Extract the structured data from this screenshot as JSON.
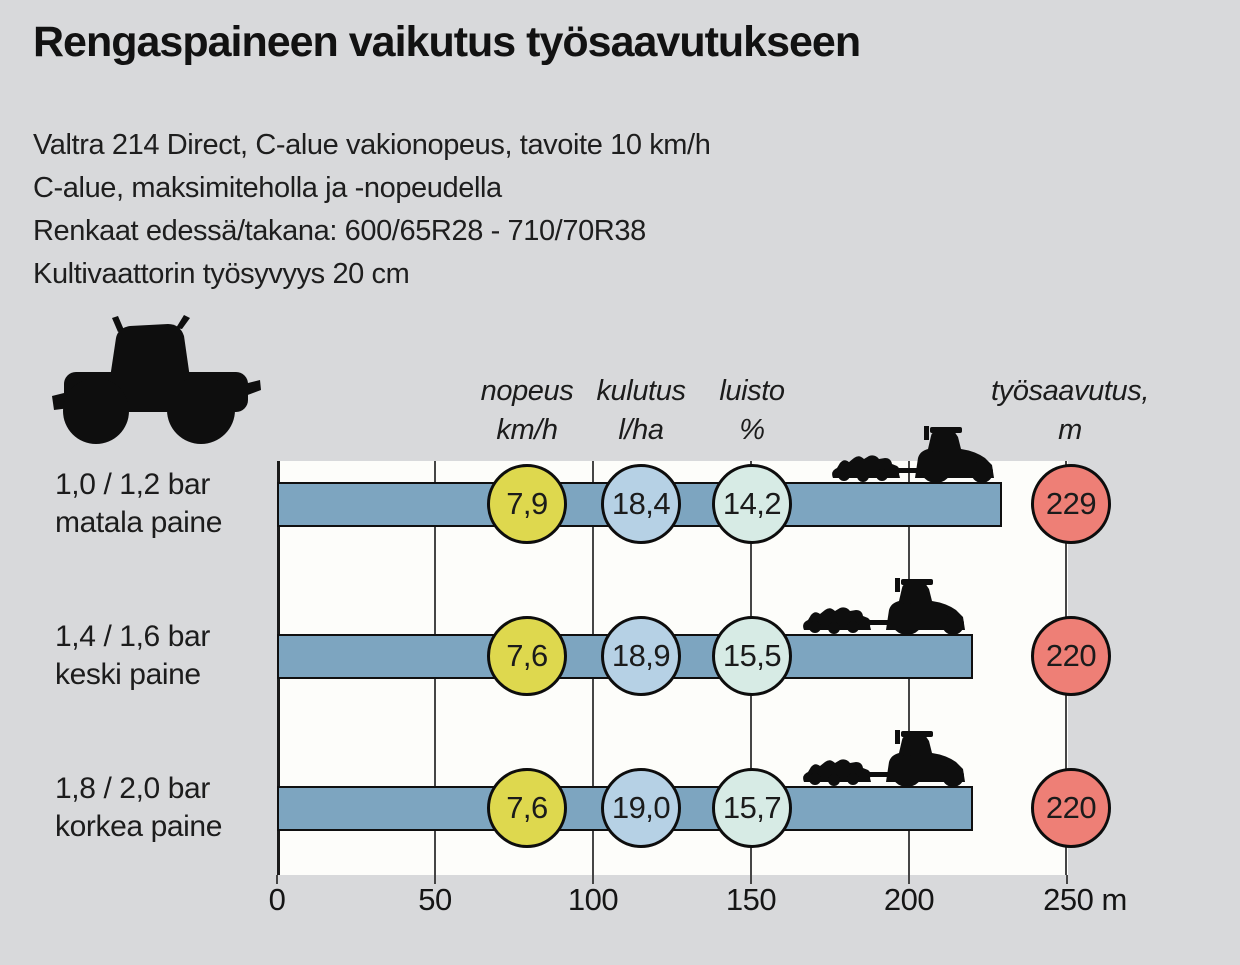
{
  "title": "Rengaspaineen vaikutus työsaavutukseen",
  "subtitle_lines": [
    "Valtra 214 Direct, C-alue vakionopeus, tavoite 10 km/h",
    "C-alue, maksimiteholla ja -nopeudella",
    "Renkaat edessä/takana: 600/65R28 - 710/70R38",
    "Kultivaattorin työsyvyys 20 cm"
  ],
  "columns": [
    {
      "line1": "nopeus",
      "line2": "km/h"
    },
    {
      "line1": "kulutus",
      "line2": "l/ha"
    },
    {
      "line1": "luisto",
      "line2": "%"
    },
    {
      "line1": "työsaavutus,",
      "line2": "m"
    }
  ],
  "rows": [
    {
      "label1": "1,0 / 1,2 bar",
      "label2": "matala paine",
      "nopeus": "7,9",
      "kulutus": "18,4",
      "luisto": "14,2",
      "tyosaavutus": "229"
    },
    {
      "label1": "1,4 / 1,6 bar",
      "label2": "keski paine",
      "nopeus": "7,6",
      "kulutus": "18,9",
      "luisto": "15,5",
      "tyosaavutus": "220"
    },
    {
      "label1": "1,8 / 2,0 bar",
      "label2": "korkea paine",
      "nopeus": "7,6",
      "kulutus": "19,0",
      "luisto": "15,7",
      "tyosaavutus": "220"
    }
  ],
  "axis": {
    "tick_labels": [
      "0",
      "50",
      "100",
      "150",
      "200",
      "250 m"
    ]
  },
  "chart_data": {
    "type": "bar",
    "orientation": "horizontal",
    "title": "Rengaspaineen vaikutus työsaavutukseen",
    "categories": [
      "1,0 / 1,2 bar matala paine",
      "1,4 / 1,6 bar keski paine",
      "1,8 / 2,0 bar korkea paine"
    ],
    "bar_values_m": [
      229,
      220,
      220
    ],
    "series": [
      {
        "name": "nopeus km/h",
        "values": [
          7.9,
          7.6,
          7.6
        ]
      },
      {
        "name": "kulutus l/ha",
        "values": [
          18.4,
          18.9,
          19.0
        ]
      },
      {
        "name": "luisto %",
        "values": [
          14.2,
          15.5,
          15.7
        ]
      },
      {
        "name": "työsaavutus, m",
        "values": [
          229,
          220,
          220
        ]
      }
    ],
    "xlim": [
      0,
      250
    ],
    "x_ticks": [
      0,
      50,
      100,
      150,
      200,
      250
    ],
    "x_unit": "m",
    "grid": "vertical-gridlines",
    "legend": "none",
    "colors": {
      "bar": "#7da5c0",
      "nopeus_circle": "#ded84e",
      "kulutus_circle": "#b6d1e5",
      "luisto_circle": "#d7ebe5",
      "tyosaavutus_circle": "#ee7f76",
      "background": "#d8d9db",
      "plot_background": "#fdfdfa"
    }
  }
}
